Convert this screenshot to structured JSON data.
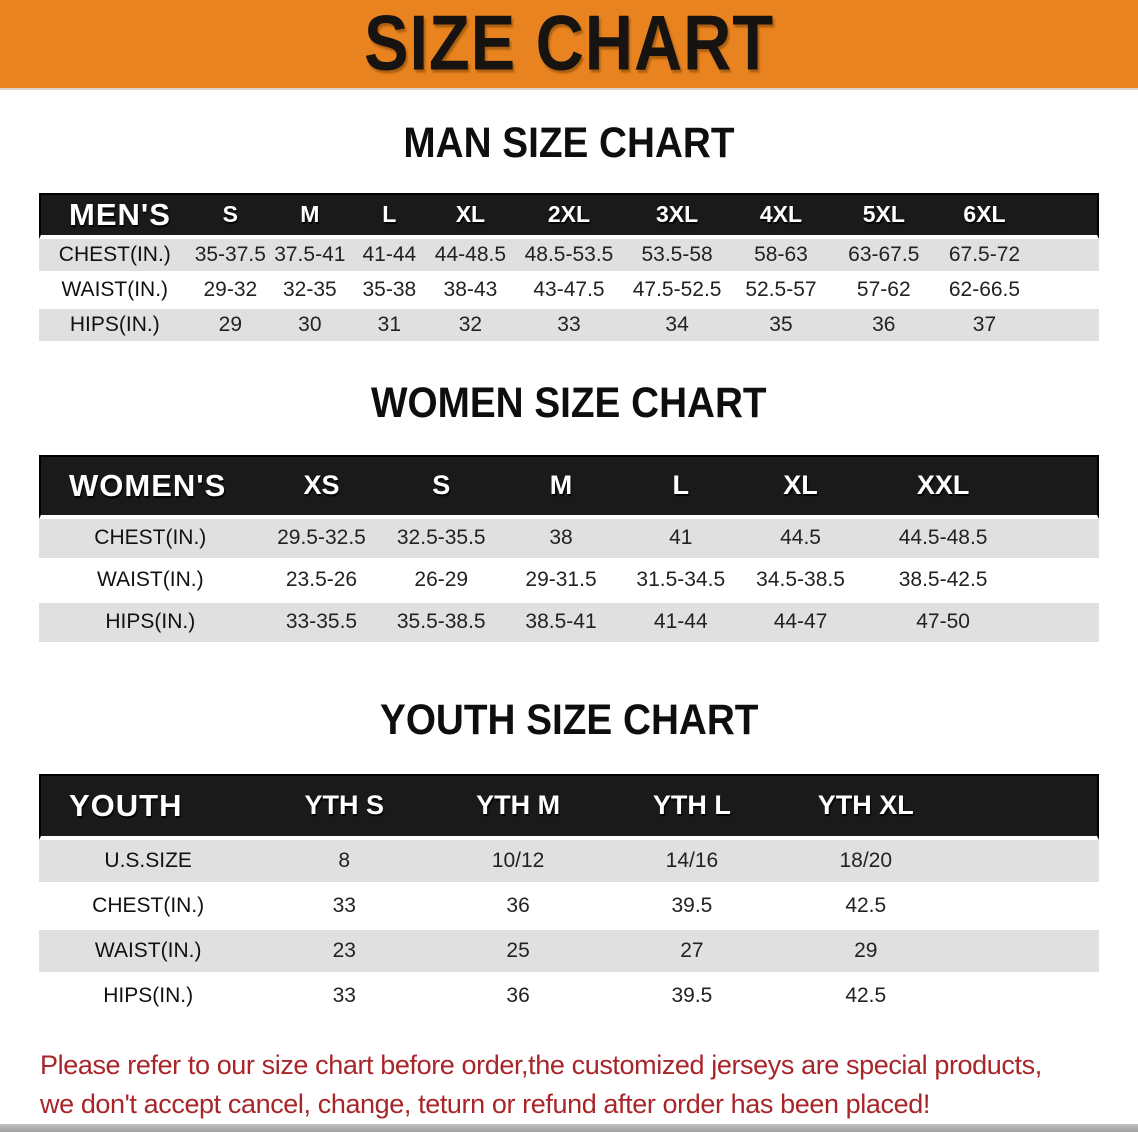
{
  "banner": {
    "title": "SIZE CHART",
    "bg_color": "#E8831F",
    "text_color": "#171310"
  },
  "sections": {
    "men": {
      "heading": "MAN SIZE CHART",
      "label": "MEN'S",
      "columns": [
        "S",
        "M",
        "L",
        "XL",
        "2XL",
        "3XL",
        "4XL",
        "5XL",
        "6XL"
      ],
      "rows": [
        {
          "label": "CHEST(IN.)",
          "values": [
            "35-37.5",
            "37.5-41",
            "41-44",
            "44-48.5",
            "48.5-53.5",
            "53.5-58",
            "58-63",
            "63-67.5",
            "67.5-72"
          ]
        },
        {
          "label": "WAIST(IN.)",
          "values": [
            "29-32",
            "32-35",
            "35-38",
            "38-43",
            "43-47.5",
            "47.5-52.5",
            "52.5-57",
            "57-62",
            "62-66.5"
          ]
        },
        {
          "label": "HIPS(IN.)",
          "values": [
            "29",
            "30",
            "31",
            "32",
            "33",
            "34",
            "35",
            "36",
            "37"
          ]
        }
      ]
    },
    "women": {
      "heading": "WOMEN SIZE CHART",
      "label": "WOMEN'S",
      "columns": [
        "XS",
        "S",
        "M",
        "L",
        "XL",
        "XXL"
      ],
      "rows": [
        {
          "label": "CHEST(IN.)",
          "values": [
            "29.5-32.5",
            "32.5-35.5",
            "38",
            "41",
            "44.5",
            "44.5-48.5"
          ]
        },
        {
          "label": "WAIST(IN.)",
          "values": [
            "23.5-26",
            "26-29",
            "29-31.5",
            "31.5-34.5",
            "34.5-38.5",
            "38.5-42.5"
          ]
        },
        {
          "label": "HIPS(IN.)",
          "values": [
            "33-35.5",
            "35.5-38.5",
            "38.5-41",
            "41-44",
            "44-47",
            "47-50"
          ]
        }
      ]
    },
    "youth": {
      "heading": "YOUTH SIZE CHART",
      "label": "YOUTH",
      "columns": [
        "YTH S",
        "YTH M",
        "YTH L",
        "YTH XL"
      ],
      "rows": [
        {
          "label": "U.S.SIZE",
          "values": [
            "8",
            "10/12",
            "14/16",
            "18/20"
          ]
        },
        {
          "label": "CHEST(IN.)",
          "values": [
            "33",
            "36",
            "39.5",
            "42.5"
          ]
        },
        {
          "label": "WAIST(IN.)",
          "values": [
            "23",
            "25",
            "27",
            "29"
          ]
        },
        {
          "label": "HIPS(IN.)",
          "values": [
            "33",
            "36",
            "39.5",
            "42.5"
          ]
        }
      ]
    }
  },
  "disclaimer": {
    "line1": "Please refer to our size chart before order,the customized jerseys are special products,",
    "line2": "we don't accept cancel, change, teturn or refund after order has been placed!",
    "color": "#A8262A"
  },
  "colors": {
    "header_band": "#1a1a1a",
    "stripe_gray": "#e0e0e0",
    "banner_orange": "#E8831F"
  }
}
